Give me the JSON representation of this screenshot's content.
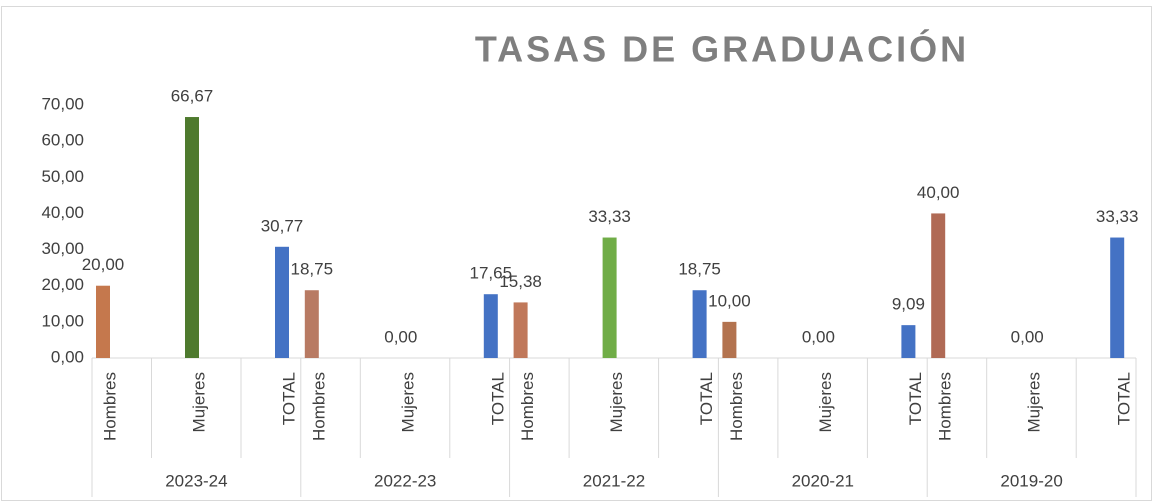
{
  "chart_data": {
    "type": "bar",
    "title": "TASAS DE GRADUACIÓN",
    "categories": [
      "Hombres",
      "Mujeres",
      "TOTAL",
      "Hombres",
      "Mujeres",
      "TOTAL",
      "Hombres",
      "Mujeres",
      "TOTAL",
      "Hombres",
      "Mujeres",
      "TOTAL",
      "Hombres",
      "Mujeres",
      "TOTAL"
    ],
    "groups": [
      "2023-24",
      "2022-23",
      "2021-22",
      "2020-21",
      "2019-20"
    ],
    "values": [
      20.0,
      66.67,
      30.77,
      18.75,
      0.0,
      17.65,
      15.38,
      33.33,
      18.75,
      10.0,
      0.0,
      9.09,
      40.0,
      0.0,
      33.33
    ],
    "value_labels": [
      "20,00",
      "66,67",
      "30,77",
      "18,75",
      "0,00",
      "17,65",
      "15,38",
      "33,33",
      "18,75",
      "10,00",
      "0,00",
      "9,09",
      "40,00",
      "0,00",
      "33,33"
    ],
    "colors": [
      "#c5784d",
      "#4e7a2e",
      "#4472c4",
      "#b87a63",
      "#4e7a2e",
      "#4472c4",
      "#c0785a",
      "#70ad47",
      "#4472c4",
      "#b3734f",
      "#70ad47",
      "#4472c4",
      "#b06a55",
      "#70ad47",
      "#4472c4"
    ],
    "ylim": [
      0,
      70
    ],
    "yticks": [
      {
        "value": 0,
        "label": "0,00"
      },
      {
        "value": 10,
        "label": "10,00"
      },
      {
        "value": 20,
        "label": "20,00"
      },
      {
        "value": 30,
        "label": "30,00"
      },
      {
        "value": 40,
        "label": "40,00"
      },
      {
        "value": 50,
        "label": "50,00"
      },
      {
        "value": 60,
        "label": "60,00"
      },
      {
        "value": 70,
        "label": "70,00"
      }
    ],
    "grid": false
  }
}
